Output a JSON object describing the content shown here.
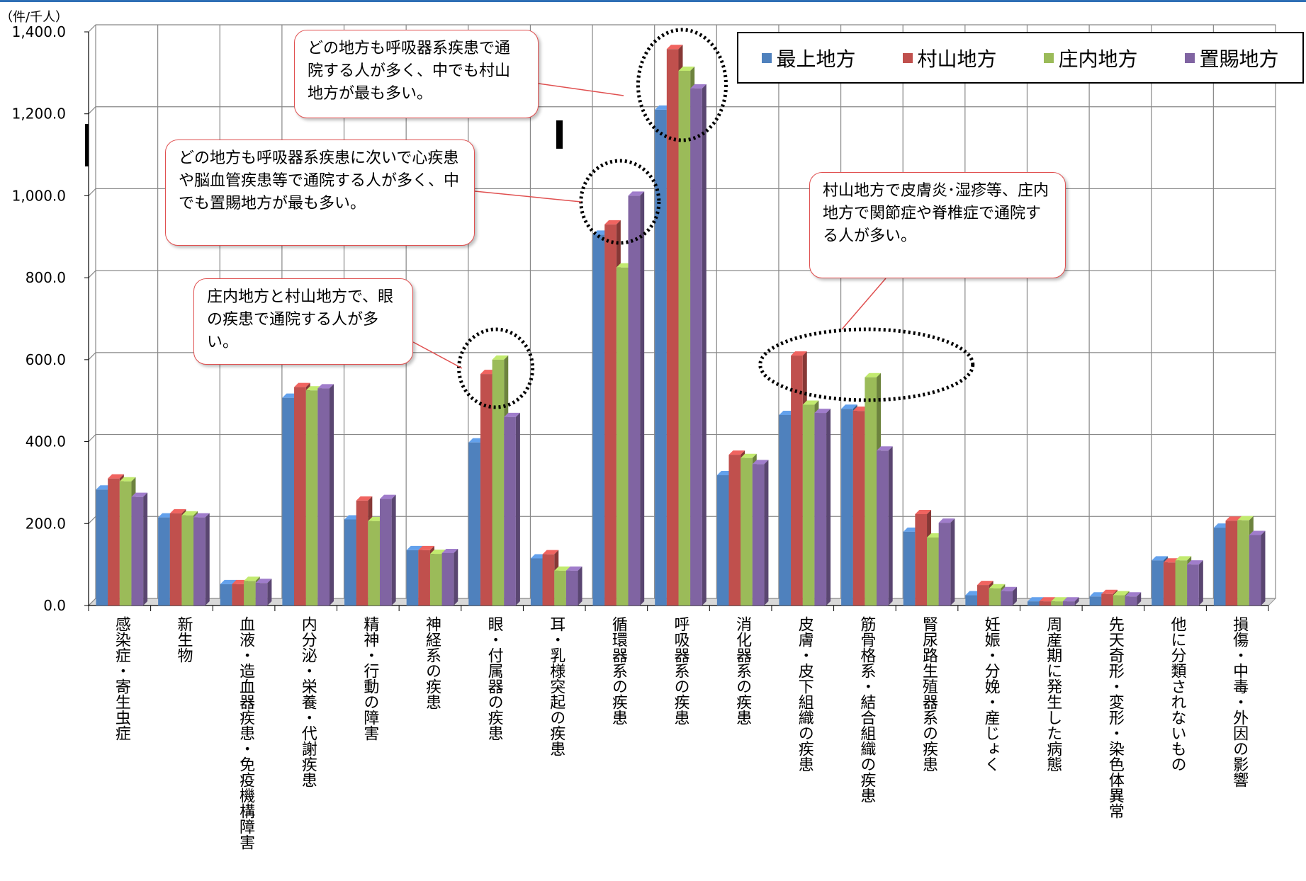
{
  "chart_data": {
    "type": "bar",
    "unit_label": "（件/千人）",
    "ylim": [
      0,
      1400
    ],
    "yticks": [
      "0.0",
      "200.0",
      "400.0",
      "600.0",
      "800.0",
      "1,000.0",
      "1,200.0",
      "1,400.0"
    ],
    "grid": true,
    "legend_position": "top-right",
    "categories": [
      "感染症・寄生虫症",
      "新生物",
      "血液・造血器疾患・免疫機構障害",
      "内分泌・栄養・代謝疾患",
      "精神・行動の障害",
      "神経系の疾患",
      "眼・付属器の疾患",
      "耳・乳様突起の疾患",
      "循環器系の疾患",
      "呼吸器系の疾患",
      "消化器系の疾患",
      "皮膚・皮下組織の疾患",
      "筋骨格系・結合組織の疾患",
      "腎尿路生殖器系の疾患",
      "妊娠・分娩・産じょく",
      "周産期に発生した病態",
      "先天奇形・変形・染色体異常",
      "他に分類されないもの",
      "損傷・中毒・外因の影響"
    ],
    "series": [
      {
        "name": "最上地方",
        "color": "#4f81bd",
        "values": [
          283,
          215,
          52,
          507,
          210,
          135,
          398,
          115,
          905,
          1210,
          318,
          465,
          480,
          180,
          25,
          10,
          22,
          110,
          190
        ]
      },
      {
        "name": "村山地方",
        "color": "#c0504d",
        "values": [
          310,
          225,
          52,
          533,
          256,
          135,
          565,
          125,
          930,
          1358,
          368,
          610,
          475,
          223,
          50,
          10,
          28,
          105,
          207
        ]
      },
      {
        "name": "庄内地方",
        "color": "#9bbb59",
        "values": [
          303,
          220,
          60,
          525,
          206,
          126,
          600,
          85,
          825,
          1305,
          360,
          490,
          557,
          166,
          42,
          10,
          25,
          110,
          208
        ]
      },
      {
        "name": "置賜地方",
        "color": "#8064a2",
        "values": [
          265,
          215,
          55,
          530,
          260,
          128,
          460,
          85,
          1000,
          1262,
          345,
          470,
          378,
          202,
          35,
          10,
          22,
          100,
          172
        ]
      }
    ]
  },
  "callouts": [
    {
      "text": "どの地方も呼吸器系疾患で通院する人が多く、中でも村山地方が最も多い。"
    },
    {
      "text": "どの地方も呼吸器系疾患に次いで心疾患や脳血管疾患等で通院する人が多く、中でも置賜地方が最も多い。"
    },
    {
      "text": "庄内地方と村山地方で、眼の疾患で通院する人が多い。"
    },
    {
      "text": "村山地方で皮膚炎･湿疹等、庄内地方で関節症や脊椎症で通院する人が多い。"
    }
  ]
}
